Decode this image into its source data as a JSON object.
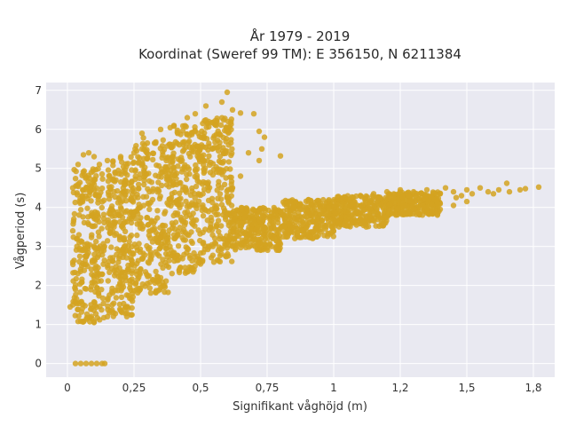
{
  "chart_data": {
    "type": "scatter",
    "title": "År 1979 - 2019",
    "subtitle": "Koordinat (Sweref 99 TM): E 356150, N 6211384",
    "xlabel": "Signifikant våghöjd (m)",
    "ylabel": "Vågperiod (s)",
    "xlim": [
      -0.08,
      1.83
    ],
    "ylim": [
      -0.35,
      7.2
    ],
    "x_ticks": [
      0,
      0.25,
      0.5,
      0.75,
      1,
      1.25,
      1.5,
      1.75
    ],
    "x_tick_labels": [
      "0",
      "0,25",
      "0,5",
      "0,75",
      "1",
      "1,2",
      "1,5",
      "1,8"
    ],
    "y_ticks": [
      0,
      1,
      2,
      3,
      4,
      5,
      6,
      7
    ],
    "y_tick_labels": [
      "0",
      "1",
      "2",
      "3",
      "4",
      "5",
      "6",
      "7"
    ],
    "grid": true,
    "legend": "none",
    "marker_color": "#d4a321",
    "background_color": "#e9e9f1",
    "dense_regions": [
      {
        "x": [
          0.02,
          0.14
        ],
        "y": [
          1.05,
          5.0
        ]
      },
      {
        "x": [
          0.15,
          0.25
        ],
        "y": [
          1.2,
          5.3
        ]
      },
      {
        "x": [
          0.25,
          0.38
        ],
        "y": [
          1.8,
          5.8
        ]
      },
      {
        "x": [
          0.38,
          0.5
        ],
        "y": [
          2.3,
          6.1
        ]
      },
      {
        "x": [
          0.5,
          0.62
        ],
        "y": [
          2.6,
          6.3
        ]
      },
      {
        "x": [
          0.62,
          0.8
        ],
        "y": [
          2.9,
          4.0
        ]
      },
      {
        "x": [
          0.8,
          1.0
        ],
        "y": [
          3.2,
          4.2
        ]
      },
      {
        "x": [
          1.0,
          1.2
        ],
        "y": [
          3.5,
          4.3
        ]
      },
      {
        "x": [
          1.2,
          1.4
        ],
        "y": [
          3.8,
          4.4
        ]
      }
    ],
    "series": [
      {
        "values": [
          [
            0.03,
            0
          ],
          [
            0.05,
            0
          ],
          [
            0.07,
            0
          ],
          [
            0.09,
            0
          ],
          [
            0.11,
            0
          ],
          [
            0.13,
            0
          ],
          [
            0.14,
            0
          ],
          [
            0.02,
            1.5
          ],
          [
            0.01,
            1.45
          ],
          [
            0.03,
            1.9
          ],
          [
            0.02,
            2.6
          ],
          [
            0.02,
            3.4
          ],
          [
            0.02,
            4.5
          ],
          [
            0.04,
            5.1
          ],
          [
            0.06,
            5.35
          ],
          [
            0.08,
            5.4
          ],
          [
            0.1,
            5.3
          ],
          [
            0.12,
            5.1
          ],
          [
            0.05,
            1.08
          ],
          [
            0.1,
            1.05
          ],
          [
            0.15,
            1.2
          ],
          [
            0.18,
            1.28
          ],
          [
            0.22,
            1.45
          ],
          [
            0.26,
            1.9
          ],
          [
            0.3,
            2.05
          ],
          [
            0.35,
            2.2
          ],
          [
            0.42,
            2.4
          ],
          [
            0.5,
            2.55
          ],
          [
            0.55,
            2.6
          ],
          [
            0.15,
            5.2
          ],
          [
            0.2,
            5.3
          ],
          [
            0.25,
            5.4
          ],
          [
            0.28,
            5.5
          ],
          [
            0.3,
            5.65
          ],
          [
            0.28,
            5.9
          ],
          [
            0.35,
            6.0
          ],
          [
            0.4,
            6.1
          ],
          [
            0.45,
            6.3
          ],
          [
            0.48,
            6.4
          ],
          [
            0.52,
            6.6
          ],
          [
            0.58,
            6.7
          ],
          [
            0.6,
            6.95
          ],
          [
            0.62,
            6.5
          ],
          [
            0.65,
            6.42
          ],
          [
            0.7,
            6.4
          ],
          [
            0.72,
            5.95
          ],
          [
            0.74,
            5.8
          ],
          [
            0.73,
            5.5
          ],
          [
            0.72,
            5.2
          ],
          [
            0.8,
            5.32
          ],
          [
            0.68,
            5.4
          ],
          [
            0.65,
            4.8
          ],
          [
            0.62,
            4.5
          ],
          [
            0.6,
            4.3
          ],
          [
            0.8,
            3.9
          ],
          [
            0.85,
            4.0
          ],
          [
            0.9,
            3.95
          ],
          [
            0.95,
            4.1
          ],
          [
            1.0,
            4.15
          ],
          [
            1.05,
            4.2
          ],
          [
            1.1,
            4.3
          ],
          [
            1.15,
            4.35
          ],
          [
            1.2,
            4.4
          ],
          [
            1.25,
            4.45
          ],
          [
            1.3,
            4.4
          ],
          [
            1.35,
            4.45
          ],
          [
            1.4,
            4.35
          ],
          [
            1.42,
            4.5
          ],
          [
            1.45,
            4.4
          ],
          [
            1.48,
            4.3
          ],
          [
            1.5,
            4.45
          ],
          [
            1.52,
            4.35
          ],
          [
            1.55,
            4.5
          ],
          [
            1.58,
            4.4
          ],
          [
            1.6,
            4.35
          ],
          [
            1.62,
            4.45
          ],
          [
            1.65,
            4.62
          ],
          [
            1.66,
            4.4
          ],
          [
            1.7,
            4.45
          ],
          [
            1.72,
            4.48
          ],
          [
            1.77,
            4.52
          ],
          [
            1.1,
            3.7
          ],
          [
            1.15,
            3.8
          ],
          [
            1.2,
            3.75
          ],
          [
            1.25,
            3.85
          ],
          [
            1.3,
            3.95
          ],
          [
            1.35,
            4.0
          ],
          [
            1.4,
            3.95
          ],
          [
            1.5,
            4.15
          ],
          [
            1.45,
            4.05
          ],
          [
            1.28,
            4.3
          ],
          [
            1.38,
            4.2
          ],
          [
            1.46,
            4.25
          ]
        ]
      }
    ]
  }
}
